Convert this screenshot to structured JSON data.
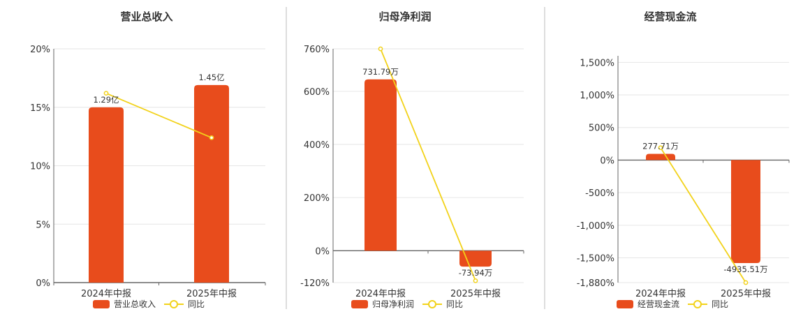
{
  "colors": {
    "bar": "#e84c1c",
    "line": "#f2d21a",
    "divider": "#bbbbbb"
  },
  "chart_data": [
    {
      "type": "bar",
      "title": "营业总收入",
      "categories": [
        "2024年中报",
        "2025年中报"
      ],
      "series": [
        {
          "name": "营业总收入",
          "kind": "bar",
          "values": [
            15,
            16.9
          ],
          "labels": [
            "1.29亿",
            "1.45亿"
          ]
        },
        {
          "name": "同比",
          "kind": "line",
          "values": [
            16.2,
            12.4
          ]
        }
      ],
      "yticks": [
        0,
        5,
        10,
        15,
        20
      ],
      "yticklabels": [
        "0%",
        "5%",
        "10%",
        "15%",
        "20%"
      ],
      "ylim": [
        0,
        20
      ],
      "legend": "bottom"
    },
    {
      "type": "bar",
      "title": "归母净利润",
      "categories": [
        "2024年中报",
        "2025年中报"
      ],
      "series": [
        {
          "name": "归母净利润",
          "kind": "bar",
          "values": [
            645,
            -60
          ],
          "labels": [
            "731.79万",
            "-73.94万"
          ]
        },
        {
          "name": "同比",
          "kind": "line",
          "values": [
            760,
            -113
          ]
        }
      ],
      "yticks": [
        -120,
        0,
        200,
        400,
        600,
        760
      ],
      "yticklabels": [
        "-120%",
        "0%",
        "200%",
        "400%",
        "600%",
        "760%"
      ],
      "ylim": [
        -120,
        760
      ],
      "legend": "bottom"
    },
    {
      "type": "bar",
      "title": "经营现金流",
      "categories": [
        "2024年中报",
        "2025年中报"
      ],
      "series": [
        {
          "name": "经营现金流",
          "kind": "bar",
          "values": [
            95,
            -1580
          ],
          "labels": [
            "277.71万",
            "-4935.51万"
          ]
        },
        {
          "name": "同比",
          "kind": "line",
          "values": [
            190,
            -1880
          ]
        }
      ],
      "yticks": [
        -1880,
        -1500,
        -1000,
        -500,
        0,
        500,
        1000,
        1500
      ],
      "yticklabels": [
        "-1,880%",
        "-1,500%",
        "-1,000%",
        "-500%",
        "0%",
        "500%",
        "1,000%",
        "1,500%"
      ],
      "ylim": [
        -1880,
        1600
      ],
      "legend": "bottom"
    }
  ]
}
